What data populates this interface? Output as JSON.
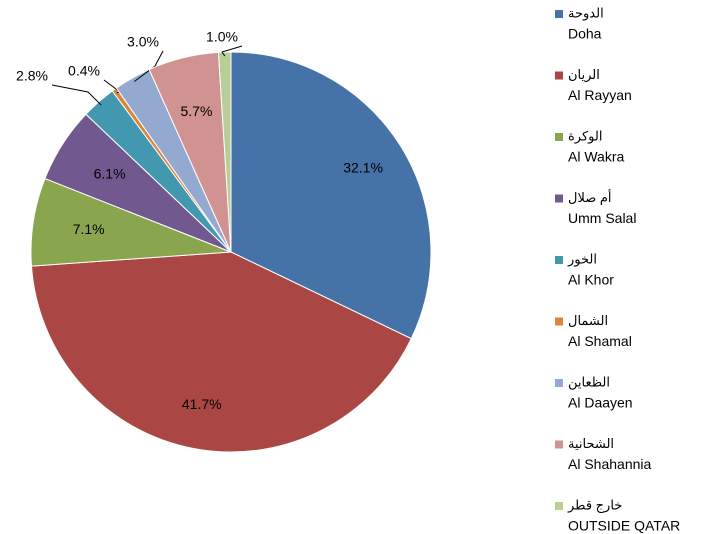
{
  "chart_data": {
    "type": "pie",
    "categories": [
      "Doha",
      "Al Rayyan",
      "Al Wakra",
      "Umm Salal",
      "Al Khor",
      "Al Shamal",
      "Al Daayen",
      "Al Shahannia",
      "OUTSIDE QATAR"
    ],
    "categories_arabic": [
      "الدوحة",
      "الريان",
      "الوكرة",
      "أم صلال",
      "الخور",
      "الشمال",
      "الظعاين",
      "الشحانية",
      "خارج قطر"
    ],
    "values": [
      32.1,
      41.7,
      7.1,
      6.1,
      2.8,
      0.4,
      3.0,
      5.7,
      1.0
    ],
    "value_labels": [
      "32.1%",
      "41.7%",
      "7.1%",
      "6.1%",
      "2.8%",
      "0.4%",
      "3.0%",
      "5.7%",
      "1.0%"
    ],
    "colors": [
      "#4572a7",
      "#aa4643",
      "#89a54e",
      "#71588f",
      "#4198af",
      "#db843d",
      "#93a9cf",
      "#d19392",
      "#b9cd96"
    ],
    "legend": "right"
  }
}
